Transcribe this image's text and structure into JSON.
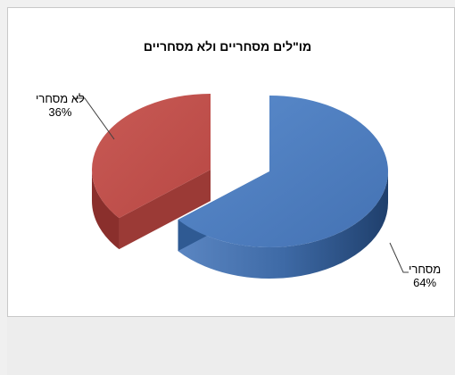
{
  "chart_data": {
    "type": "pie",
    "style": "3d-exploded",
    "title": "מו\"לים מסחריים ולא מסחריים",
    "categories": [
      "מסחרי",
      "לא מסחרי"
    ],
    "values": [
      64,
      36
    ],
    "value_format": "percent",
    "data_labels": [
      "64%",
      "36%"
    ],
    "colors": [
      "#4f81bd",
      "#c0504d"
    ],
    "legend": "none"
  }
}
